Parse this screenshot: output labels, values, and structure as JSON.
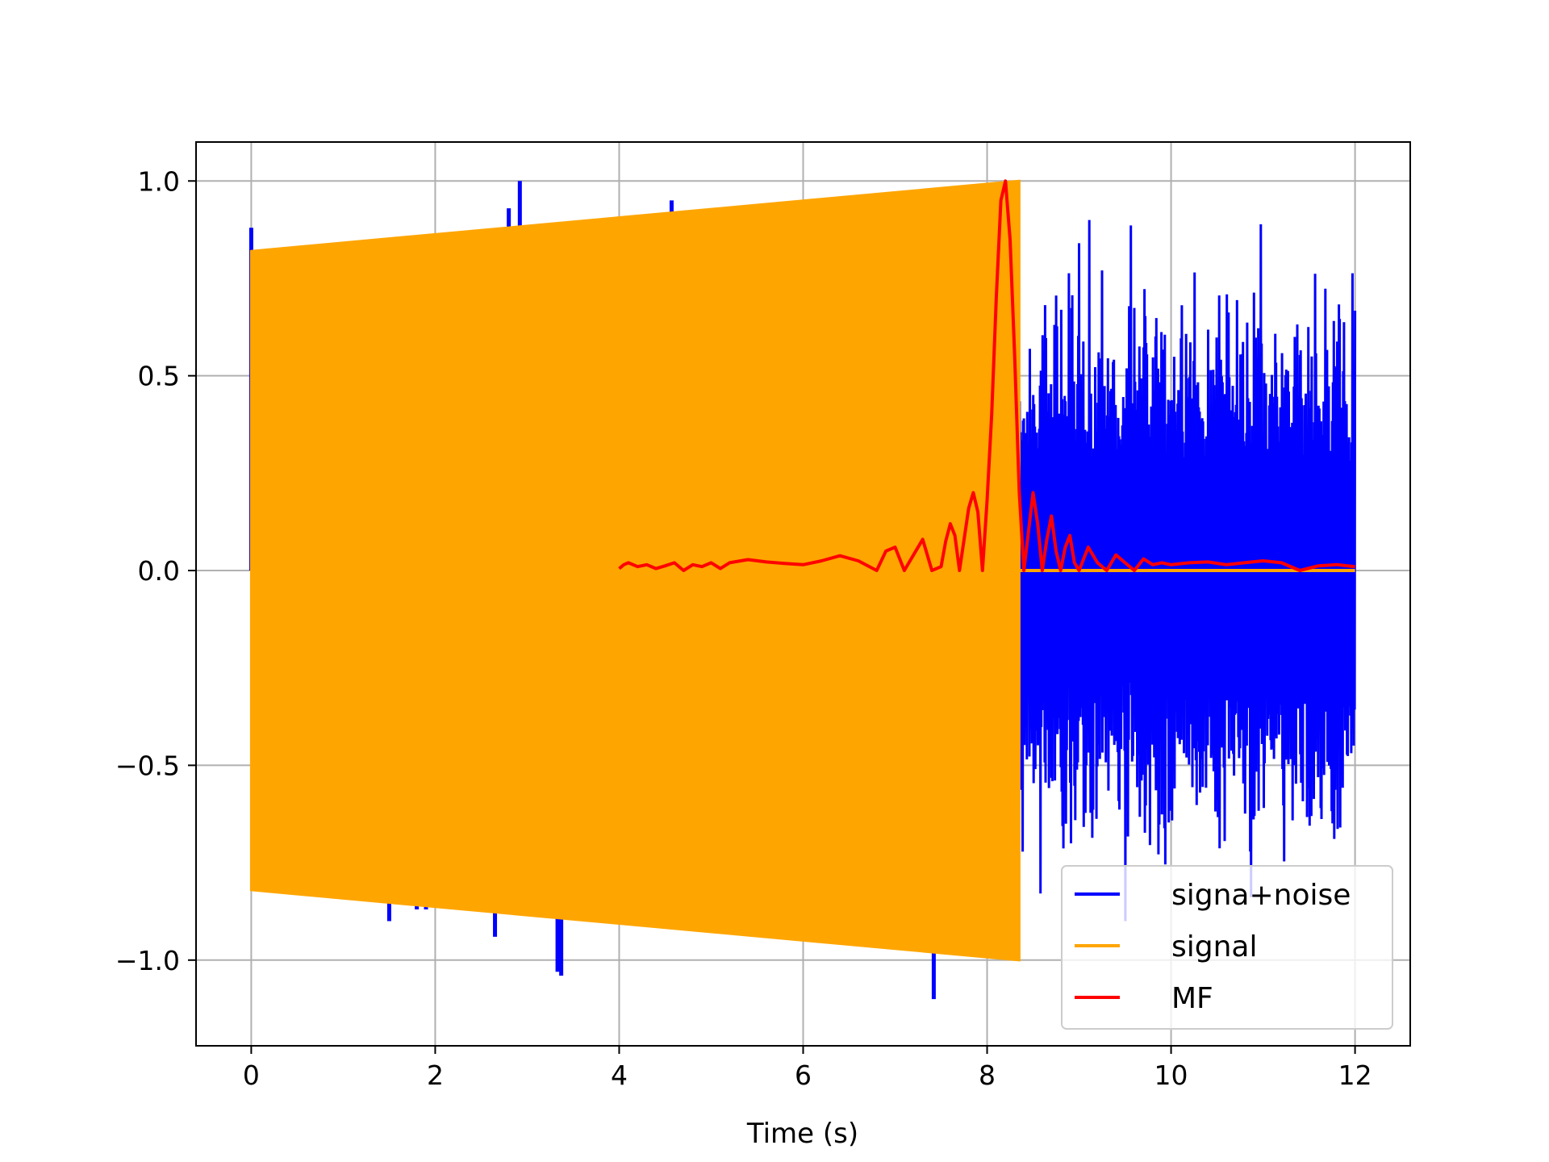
{
  "chart_data": {
    "type": "line",
    "title": "",
    "xlabel": "Time (s)",
    "ylabel": "",
    "xlim": [
      -0.6,
      12.6
    ],
    "ylim": [
      -1.22,
      1.1
    ],
    "xticks": [
      0,
      2,
      4,
      6,
      8,
      10,
      12
    ],
    "yticks": [
      -1.0,
      -0.5,
      0.0,
      0.5,
      1.0
    ],
    "xtick_labels": [
      "0",
      "2",
      "4",
      "6",
      "8",
      "10",
      "12"
    ],
    "ytick_labels": [
      "−1.0",
      "−0.5",
      "0.0",
      "0.5",
      "1.0"
    ],
    "grid": true,
    "legend_position": "lower-right",
    "series": [
      {
        "name": "signa+noise",
        "color": "#0000ff",
        "description_range": {
          "x": [
            0,
            12
          ],
          "y": [
            -1.1,
            1.0
          ]
        },
        "spikes": [
          {
            "x": 0.0,
            "y": 0.88
          },
          {
            "x": 1.5,
            "y": -0.9
          },
          {
            "x": 1.8,
            "y": -0.87
          },
          {
            "x": 1.9,
            "y": -0.87
          },
          {
            "x": 2.65,
            "y": -0.94
          },
          {
            "x": 2.8,
            "y": 0.93
          },
          {
            "x": 2.92,
            "y": 1.0
          },
          {
            "x": 3.33,
            "y": -1.03
          },
          {
            "x": 3.37,
            "y": -1.04
          },
          {
            "x": 3.43,
            "y": -0.89
          },
          {
            "x": 4.57,
            "y": 0.95
          },
          {
            "x": 4.57,
            "y": -0.92
          },
          {
            "x": 7.42,
            "y": -1.1
          }
        ]
      },
      {
        "name": "signal",
        "color": "#ffa500",
        "envelope": {
          "x": [
            0,
            8.35
          ],
          "amplitude": [
            0.82,
            1.0
          ]
        },
        "after_x": 8.35,
        "after_value": 0.0,
        "end_x": 12.0
      },
      {
        "name": "MF",
        "color": "#ff0000",
        "x": [
          4.0,
          4.05,
          4.1,
          4.2,
          4.3,
          4.4,
          4.5,
          4.6,
          4.7,
          4.8,
          4.9,
          5.0,
          5.1,
          5.2,
          5.4,
          5.6,
          5.8,
          6.0,
          6.2,
          6.4,
          6.6,
          6.8,
          6.9,
          7.0,
          7.1,
          7.2,
          7.3,
          7.4,
          7.5,
          7.55,
          7.6,
          7.65,
          7.7,
          7.75,
          7.8,
          7.85,
          7.9,
          7.95,
          8.0,
          8.05,
          8.1,
          8.15,
          8.2,
          8.25,
          8.3,
          8.35,
          8.4,
          8.45,
          8.5,
          8.55,
          8.6,
          8.65,
          8.7,
          8.75,
          8.8,
          8.85,
          8.9,
          8.95,
          9.0,
          9.1,
          9.2,
          9.3,
          9.4,
          9.5,
          9.6,
          9.7,
          9.8,
          9.9,
          10.0,
          10.2,
          10.4,
          10.6,
          10.8,
          11.0,
          11.2,
          11.4,
          11.6,
          11.8,
          12.0
        ],
        "y": [
          0.005,
          0.015,
          0.02,
          0.01,
          0.015,
          0.005,
          0.012,
          0.02,
          0.0,
          0.015,
          0.01,
          0.02,
          0.005,
          0.02,
          0.028,
          0.022,
          0.018,
          0.015,
          0.025,
          0.038,
          0.025,
          0.0,
          0.05,
          0.06,
          0.0,
          0.04,
          0.08,
          0.0,
          0.01,
          0.075,
          0.12,
          0.09,
          0.0,
          0.08,
          0.16,
          0.2,
          0.15,
          0.0,
          0.18,
          0.4,
          0.7,
          0.95,
          1.0,
          0.85,
          0.55,
          0.2,
          0.0,
          0.1,
          0.2,
          0.12,
          0.0,
          0.08,
          0.14,
          0.05,
          0.0,
          0.06,
          0.09,
          0.02,
          0.0,
          0.06,
          0.02,
          0.0,
          0.04,
          0.02,
          0.0,
          0.03,
          0.015,
          0.02,
          0.015,
          0.02,
          0.022,
          0.015,
          0.02,
          0.025,
          0.02,
          0.0,
          0.012,
          0.015,
          0.01
        ]
      }
    ]
  }
}
